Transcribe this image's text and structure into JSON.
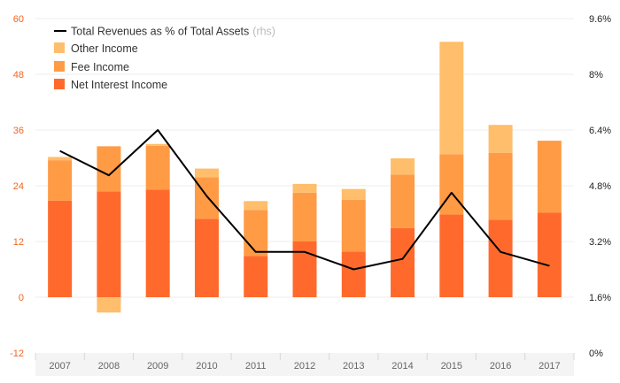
{
  "chart_data": {
    "type": "bar",
    "subtype": "stacked bar with line on secondary axis",
    "categories": [
      "2007",
      "2008",
      "2009",
      "2010",
      "2011",
      "2012",
      "2013",
      "2014",
      "2015",
      "2016",
      "2017"
    ],
    "series": [
      {
        "name": "Net Interest Income",
        "kind": "bar",
        "axis": "left",
        "color": "#ff6a2c",
        "values": [
          20.8,
          22.8,
          23.2,
          16.9,
          8.9,
          12.0,
          9.8,
          14.9,
          17.8,
          16.7,
          18.2
        ]
      },
      {
        "name": "Fee Income",
        "kind": "bar",
        "axis": "left",
        "color": "#ff9b45",
        "values": [
          8.7,
          9.7,
          9.4,
          8.9,
          9.9,
          10.5,
          11.2,
          11.5,
          13.0,
          14.4,
          15.5
        ]
      },
      {
        "name": "Other Income",
        "kind": "bar",
        "axis": "left",
        "color": "#ffbe6b",
        "values": [
          0.7,
          -3.3,
          0.4,
          1.9,
          1.9,
          1.9,
          2.3,
          3.5,
          24.2,
          6.0,
          0.0
        ]
      },
      {
        "name": "Total Revenues as % of Total Assets",
        "kind": "line",
        "axis": "right",
        "color": "#000000",
        "values": [
          5.8,
          5.1,
          6.4,
          4.5,
          2.9,
          2.9,
          2.4,
          2.7,
          4.6,
          2.9,
          2.5
        ]
      }
    ],
    "legend": {
      "placement": "top-left",
      "items": [
        {
          "label": "Total Revenues as % of Total Assets",
          "note": "(rhs)",
          "marker": "line",
          "color": "#000000"
        },
        {
          "label": "Other Income",
          "marker": "square",
          "color": "#ffbe6b"
        },
        {
          "label": "Fee Income",
          "marker": "square",
          "color": "#ff9b45"
        },
        {
          "label": "Net Interest Income",
          "marker": "square",
          "color": "#ff6a2c"
        }
      ]
    },
    "yleft": {
      "ylim": [
        -12,
        60
      ],
      "ticks": [
        "-12",
        "0",
        "12",
        "24",
        "36",
        "48",
        "60"
      ],
      "values": [
        -12,
        0,
        12,
        24,
        36,
        48,
        60
      ],
      "color": "#f26522"
    },
    "yright": {
      "ylim": [
        0,
        9.6
      ],
      "ticks": [
        "0%",
        "1.6%",
        "3.2%",
        "4.8%",
        "6.4%",
        "8%",
        "9.6%"
      ],
      "values": [
        0,
        1.6,
        3.2,
        4.8,
        6.4,
        8,
        9.6
      ]
    },
    "grid": true
  }
}
